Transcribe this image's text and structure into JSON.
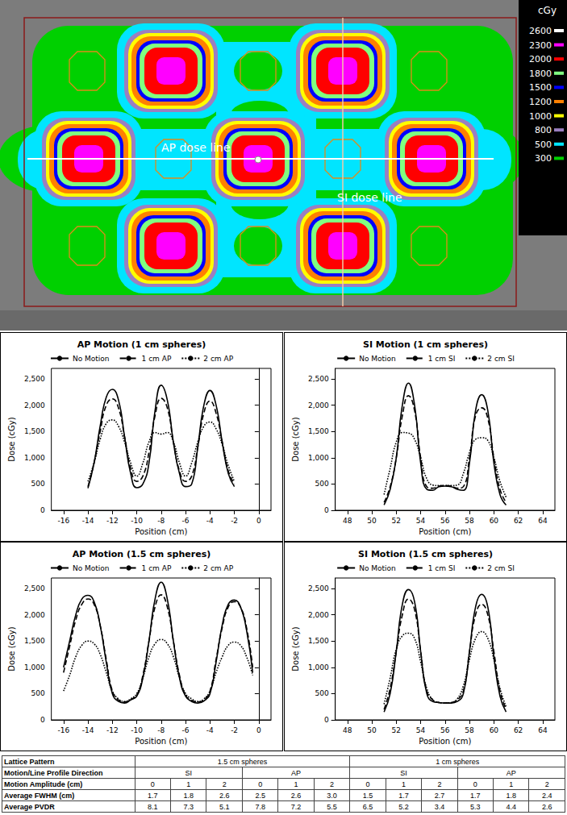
{
  "dose_map": {
    "unit": "cGy",
    "levels": [
      {
        "value": 2600,
        "color": "#ffffff"
      },
      {
        "value": 2300,
        "color": "#ff00ff"
      },
      {
        "value": 2000,
        "color": "#ff0000"
      },
      {
        "value": 1800,
        "color": "#80ff80"
      },
      {
        "value": 1500,
        "color": "#0000ff"
      },
      {
        "value": 1200,
        "color": "#ff8000"
      },
      {
        "value": 1000,
        "color": "#ffff00"
      },
      {
        "value": 800,
        "color": "#9b7fc0"
      },
      {
        "value": 500,
        "color": "#00e5ff"
      },
      {
        "value": 300,
        "color": "#00d000"
      }
    ],
    "labels": [
      "AP dose line",
      "SI dose line"
    ]
  },
  "chart_data": [
    {
      "type": "line",
      "title": "AP Motion (1 cm spheres)",
      "x_label": "Position (cm)",
      "y_label": "Dose (cGy)",
      "xlim": [
        -17,
        1
      ],
      "xticks": [
        -16,
        -14,
        -12,
        -10,
        -8,
        -6,
        -4,
        -2,
        0
      ],
      "ylim": [
        0,
        2700
      ],
      "yticks": [
        0,
        500,
        1000,
        1500,
        2000,
        2500
      ],
      "grid": false,
      "legend": "top",
      "x": [
        -14,
        -13.5,
        -13,
        -12.5,
        -12,
        -11.5,
        -11,
        -10.5,
        -10,
        -9.5,
        -9,
        -8.5,
        -8,
        -7.5,
        -7,
        -6.5,
        -6,
        -5.5,
        -5,
        -4.5,
        -4,
        -3.5,
        -3,
        -2.5,
        -2
      ],
      "series": [
        {
          "name": "No Motion",
          "color": "#000000",
          "line_style": "solid",
          "values": [
            420,
            900,
            1600,
            2150,
            2300,
            2100,
            1400,
            700,
            430,
            500,
            900,
            1900,
            2380,
            2100,
            1300,
            700,
            450,
            500,
            1200,
            2000,
            2280,
            2000,
            1300,
            700,
            450
          ]
        },
        {
          "name": "1 cm AP",
          "color": "#000000",
          "line_style": "dashed",
          "values": [
            450,
            900,
            1500,
            2000,
            2120,
            1950,
            1400,
            800,
            550,
            650,
            1100,
            1800,
            2130,
            1950,
            1300,
            750,
            550,
            650,
            1200,
            1850,
            2080,
            1850,
            1300,
            750,
            500
          ]
        },
        {
          "name": "2 cm AP",
          "color": "#000000",
          "line_style": "dotted",
          "values": [
            550,
            900,
            1350,
            1650,
            1720,
            1600,
            1300,
            900,
            650,
            900,
            1300,
            1480,
            1450,
            1480,
            1300,
            900,
            650,
            900,
            1300,
            1600,
            1680,
            1550,
            1250,
            850,
            550
          ]
        }
      ]
    },
    {
      "type": "line",
      "title": "SI Motion (1 cm spheres)",
      "x_label": "Position (cm)",
      "y_label": "Dose (cGy)",
      "xlim": [
        47,
        65
      ],
      "xticks": [
        48,
        50,
        52,
        54,
        56,
        58,
        60,
        62,
        64
      ],
      "ylim": [
        0,
        2700
      ],
      "yticks": [
        0,
        500,
        1000,
        1500,
        2000,
        2500
      ],
      "grid": false,
      "legend": "top",
      "x": [
        51,
        51.5,
        52,
        52.5,
        53,
        53.5,
        54,
        54.5,
        55,
        55.5,
        56,
        56.5,
        57,
        57.5,
        58,
        58.5,
        59,
        59.5,
        60,
        60.5,
        61
      ],
      "series": [
        {
          "name": "No Motion",
          "color": "#000000",
          "line_style": "solid",
          "values": [
            100,
            400,
            1000,
            2000,
            2420,
            2000,
            900,
            400,
            380,
            450,
            460,
            450,
            400,
            380,
            900,
            1900,
            2200,
            1900,
            900,
            300,
            100
          ]
        },
        {
          "name": "1 cm SI",
          "color": "#000000",
          "line_style": "dashed",
          "values": [
            150,
            450,
            1000,
            1800,
            2180,
            1900,
            1000,
            450,
            420,
            460,
            470,
            460,
            420,
            450,
            1000,
            1800,
            1950,
            1750,
            1000,
            400,
            150
          ]
        },
        {
          "name": "2 cm SI",
          "color": "#000000",
          "line_style": "dotted",
          "values": [
            300,
            800,
            1300,
            1480,
            1470,
            1350,
            1000,
            600,
            480,
            470,
            470,
            470,
            480,
            700,
            1100,
            1350,
            1380,
            1330,
            1000,
            550,
            250
          ]
        }
      ]
    },
    {
      "type": "line",
      "title": "AP Motion (1.5 cm spheres)",
      "x_label": "Position (cm)",
      "y_label": "Dose (cGy)",
      "xlim": [
        -17,
        1
      ],
      "xticks": [
        -16,
        -14,
        -12,
        -10,
        -8,
        -6,
        -4,
        -2,
        0
      ],
      "ylim": [
        0,
        2700
      ],
      "yticks": [
        0,
        500,
        1000,
        1500,
        2000,
        2500
      ],
      "grid": false,
      "legend": "top",
      "x": [
        -16,
        -15.5,
        -15,
        -14.5,
        -14,
        -13.5,
        -13,
        -12.5,
        -12,
        -11.5,
        -11,
        -10.5,
        -10,
        -9.5,
        -9,
        -8.5,
        -8,
        -7.5,
        -7,
        -6.5,
        -6,
        -5.5,
        -5,
        -4.5,
        -4,
        -3.5,
        -3,
        -2.5,
        -2,
        -1.5,
        -1,
        -0.5
      ],
      "series": [
        {
          "name": "No Motion",
          "color": "#000000",
          "line_style": "solid",
          "values": [
            1000,
            1500,
            2000,
            2300,
            2370,
            2250,
            1800,
            1100,
            500,
            350,
            320,
            380,
            450,
            800,
            1500,
            2300,
            2620,
            2300,
            1500,
            800,
            450,
            350,
            320,
            360,
            500,
            1100,
            1800,
            2200,
            2280,
            2150,
            1700,
            900
          ]
        },
        {
          "name": "1 cm AP",
          "color": "#000000",
          "line_style": "dashed",
          "values": [
            900,
            1400,
            1900,
            2200,
            2300,
            2200,
            1800,
            1150,
            550,
            380,
            340,
            390,
            470,
            850,
            1500,
            2150,
            2380,
            2150,
            1500,
            850,
            470,
            370,
            340,
            380,
            550,
            1150,
            1750,
            2150,
            2250,
            2150,
            1750,
            1000
          ]
        },
        {
          "name": "2 cm AP",
          "color": "#000000",
          "line_style": "dotted",
          "values": [
            550,
            850,
            1200,
            1420,
            1500,
            1450,
            1250,
            900,
            550,
            400,
            350,
            400,
            500,
            800,
            1200,
            1450,
            1530,
            1450,
            1200,
            800,
            500,
            400,
            350,
            400,
            550,
            900,
            1200,
            1420,
            1480,
            1420,
            1200,
            850
          ]
        }
      ]
    },
    {
      "type": "line",
      "title": "SI Motion (1.5 cm spheres)",
      "x_label": "Position (cm)",
      "y_label": "Dose (cGy)",
      "xlim": [
        47,
        65
      ],
      "xticks": [
        48,
        50,
        52,
        54,
        56,
        58,
        60,
        62,
        64
      ],
      "ylim": [
        0,
        2700
      ],
      "yticks": [
        0,
        500,
        1000,
        1500,
        2000,
        2500
      ],
      "grid": false,
      "legend": "top",
      "x": [
        51,
        51.5,
        52,
        52.5,
        53,
        53.5,
        54,
        54.5,
        55,
        55.5,
        56,
        56.5,
        57,
        57.5,
        58,
        58.5,
        59,
        59.5,
        60,
        60.5,
        61
      ],
      "series": [
        {
          "name": "No Motion",
          "color": "#000000",
          "line_style": "solid",
          "values": [
            150,
            500,
            1300,
            2200,
            2480,
            2250,
            1300,
            500,
            350,
            330,
            320,
            320,
            350,
            500,
            1300,
            2150,
            2390,
            2150,
            1200,
            450,
            150
          ]
        },
        {
          "name": "1 cm SI",
          "color": "#000000",
          "line_style": "dashed",
          "values": [
            200,
            600,
            1300,
            2000,
            2300,
            2100,
            1300,
            550,
            380,
            330,
            320,
            330,
            380,
            550,
            1300,
            2000,
            2200,
            2000,
            1300,
            550,
            200
          ]
        },
        {
          "name": "2 cm SI",
          "color": "#000000",
          "line_style": "dotted",
          "values": [
            300,
            800,
            1350,
            1600,
            1650,
            1550,
            1100,
            600,
            380,
            330,
            320,
            330,
            400,
            650,
            1150,
            1550,
            1680,
            1550,
            1150,
            600,
            250
          ]
        }
      ]
    }
  ],
  "table": {
    "rows": [
      [
        {
          "text": "Lattice Pattern"
        },
        {
          "text": "1.5 cm spheres",
          "span": 6
        },
        {
          "text": "1 cm spheres",
          "span": 6
        }
      ],
      [
        {
          "text": "Motion/Line Profile Direction"
        },
        {
          "text": "SI",
          "span": 3
        },
        {
          "text": "AP",
          "span": 3
        },
        {
          "text": "SI",
          "span": 3
        },
        {
          "text": "AP",
          "span": 3
        }
      ],
      [
        {
          "text": "Motion Amplitude (cm)"
        },
        {
          "text": "0"
        },
        {
          "text": "1"
        },
        {
          "text": "2"
        },
        {
          "text": "0"
        },
        {
          "text": "1"
        },
        {
          "text": "2"
        },
        {
          "text": "0"
        },
        {
          "text": "1"
        },
        {
          "text": "2"
        },
        {
          "text": "0"
        },
        {
          "text": "1"
        },
        {
          "text": "2"
        }
      ],
      [
        {
          "text": "Average FWHM (cm)"
        },
        {
          "text": "1.7"
        },
        {
          "text": "1.8"
        },
        {
          "text": "2.6"
        },
        {
          "text": "2.5"
        },
        {
          "text": "2.6"
        },
        {
          "text": "3.0"
        },
        {
          "text": "1.5"
        },
        {
          "text": "1.7"
        },
        {
          "text": "2.7"
        },
        {
          "text": "1.7"
        },
        {
          "text": "1.8"
        },
        {
          "text": "2.4"
        }
      ],
      [
        {
          "text": "Average PVDR"
        },
        {
          "text": "8.1"
        },
        {
          "text": "7.3"
        },
        {
          "text": "5.1"
        },
        {
          "text": "7.8"
        },
        {
          "text": "7.2"
        },
        {
          "text": "5.5"
        },
        {
          "text": "6.5"
        },
        {
          "text": "5.2"
        },
        {
          "text": "3.4"
        },
        {
          "text": "5.3"
        },
        {
          "text": "4.4"
        },
        {
          "text": "2.6"
        }
      ]
    ]
  }
}
